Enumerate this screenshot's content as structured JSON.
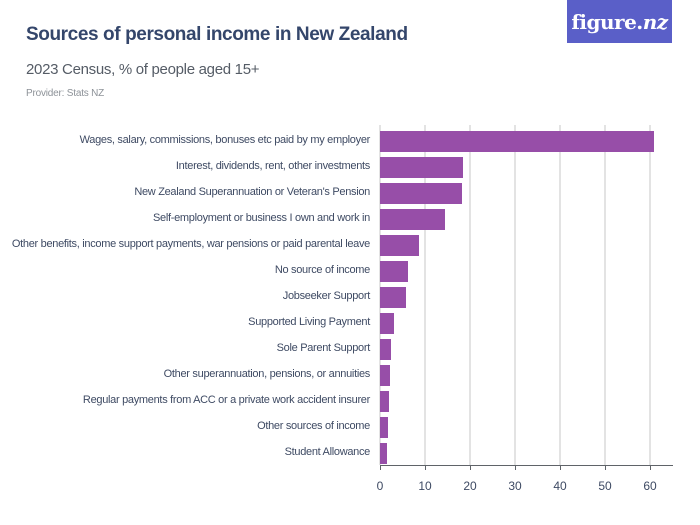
{
  "header": {
    "title": "Sources of personal income in New Zealand",
    "subtitle": "2023 Census, % of people aged 15+",
    "provider": "Provider: Stats NZ",
    "logo_text": "figure.",
    "logo_suffix": "nz"
  },
  "colors": {
    "bar": "#974ea8",
    "title": "#34466b",
    "logo_bg": "#5a5fc8"
  },
  "chart_data": {
    "type": "bar",
    "orientation": "horizontal",
    "title": "Sources of personal income in New Zealand",
    "subtitle": "2023 Census, % of people aged 15+",
    "xlabel": "",
    "ylabel": "",
    "xlim": [
      0,
      65
    ],
    "xticks": [
      0,
      10,
      20,
      30,
      40,
      50,
      60
    ],
    "grid": true,
    "legend": "none",
    "categories": [
      "Wages, salary, commissions, bonuses etc paid by my employer",
      "Interest, dividends, rent, other investments",
      "New Zealand Superannuation or Veteran's Pension",
      "Self-employment or business I own and work in",
      "Other benefits, income support payments, war pensions or paid parental leave",
      "No source of income",
      "Jobseeker Support",
      "Supported Living Payment",
      "Sole Parent Support",
      "Other superannuation, pensions, or annuities",
      "Regular payments from ACC or a private work accident insurer",
      "Other sources of income",
      "Student Allowance"
    ],
    "values": [
      60.8,
      18.4,
      18.2,
      14.4,
      8.7,
      6.2,
      5.8,
      3.1,
      2.4,
      2.2,
      1.9,
      1.7,
      1.6
    ]
  }
}
